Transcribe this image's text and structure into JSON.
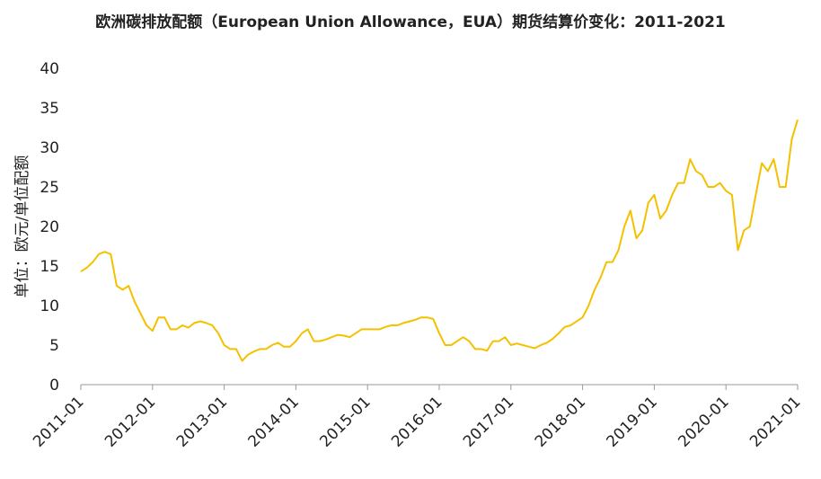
{
  "chart_data": {
    "type": "line",
    "title": "欧洲碳排放配额（European Union Allowance，EUA）期货结算价变化：2011-2021",
    "y_label": "单位：欧元/单位配额",
    "color": "#f5c000",
    "categories": [
      "2011-01",
      "2011-02",
      "2011-03",
      "2011-04",
      "2011-05",
      "2011-06",
      "2011-07",
      "2011-08",
      "2011-09",
      "2011-10",
      "2011-11",
      "2011-12",
      "2012-01",
      "2012-02",
      "2012-03",
      "2012-04",
      "2012-05",
      "2012-06",
      "2012-07",
      "2012-08",
      "2012-09",
      "2012-10",
      "2012-11",
      "2012-12",
      "2013-01",
      "2013-02",
      "2013-03",
      "2013-04",
      "2013-05",
      "2013-06",
      "2013-07",
      "2013-08",
      "2013-09",
      "2013-10",
      "2013-11",
      "2013-12",
      "2014-01",
      "2014-02",
      "2014-03",
      "2014-04",
      "2014-05",
      "2014-06",
      "2014-07",
      "2014-08",
      "2014-09",
      "2014-10",
      "2014-11",
      "2014-12",
      "2015-01",
      "2015-02",
      "2015-03",
      "2015-04",
      "2015-05",
      "2015-06",
      "2015-07",
      "2015-08",
      "2015-09",
      "2015-10",
      "2015-11",
      "2015-12",
      "2016-01",
      "2016-02",
      "2016-03",
      "2016-04",
      "2016-05",
      "2016-06",
      "2016-07",
      "2016-08",
      "2016-09",
      "2016-10",
      "2016-11",
      "2016-12",
      "2017-01",
      "2017-02",
      "2017-03",
      "2017-04",
      "2017-05",
      "2017-06",
      "2017-07",
      "2017-08",
      "2017-09",
      "2017-10",
      "2017-11",
      "2017-12",
      "2018-01",
      "2018-02",
      "2018-03",
      "2018-04",
      "2018-05",
      "2018-06",
      "2018-07",
      "2018-08",
      "2018-09",
      "2018-10",
      "2018-11",
      "2018-12",
      "2019-01",
      "2019-02",
      "2019-03",
      "2019-04",
      "2019-05",
      "2019-06",
      "2019-07",
      "2019-08",
      "2019-09",
      "2019-10",
      "2019-11",
      "2019-12",
      "2020-01",
      "2020-02",
      "2020-03",
      "2020-04",
      "2020-05",
      "2020-06",
      "2020-07",
      "2020-08",
      "2020-09",
      "2020-10",
      "2020-11",
      "2020-12",
      "2021-01"
    ],
    "values": [
      14.3,
      14.8,
      15.5,
      16.5,
      16.8,
      16.5,
      12.5,
      12,
      12.5,
      10.5,
      9,
      7.5,
      6.8,
      8.5,
      8.5,
      7,
      7,
      7.5,
      7.2,
      7.8,
      8,
      7.8,
      7.5,
      6.5,
      5,
      4.5,
      4.5,
      3,
      3.8,
      4.2,
      4.5,
      4.5,
      5,
      5.3,
      4.8,
      4.8,
      5.5,
      6.5,
      7,
      5.5,
      5.5,
      5.7,
      6,
      6.3,
      6.2,
      6,
      6.5,
      7,
      7,
      7,
      7,
      7.3,
      7.5,
      7.5,
      7.8,
      8,
      8.2,
      8.5,
      8.5,
      8.3,
      6.5,
      5,
      5,
      5.5,
      6,
      5.5,
      4.5,
      4.5,
      4.3,
      5.5,
      5.5,
      6,
      5,
      5.2,
      5,
      4.8,
      4.6,
      5,
      5.3,
      5.8,
      6.5,
      7.3,
      7.5,
      8,
      8.5,
      10,
      12,
      13.5,
      15.5,
      15.5,
      17,
      20,
      22,
      18.5,
      19.5,
      23,
      24,
      21,
      22,
      24,
      25.5,
      25.5,
      28.5,
      27,
      26.5,
      25,
      25,
      25.5,
      24.5,
      24,
      17,
      19.5,
      20,
      24,
      28,
      27,
      28.5,
      25,
      25,
      31,
      33.5
    ],
    "xticks": [
      "2011-01",
      "2012-01",
      "2013-01",
      "2014-01",
      "2015-01",
      "2016-01",
      "2017-01",
      "2018-01",
      "2019-01",
      "2020-01",
      "2021-01"
    ],
    "ylim": [
      0,
      40
    ],
    "yticks": [
      0,
      5,
      10,
      15,
      20,
      25,
      30,
      35,
      40
    ],
    "grid": false
  }
}
